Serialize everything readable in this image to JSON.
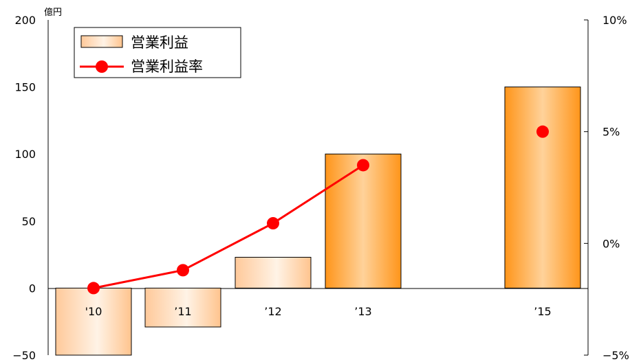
{
  "chart_data": {
    "type": "bar",
    "categories": [
      "'10",
      "’11",
      "’12",
      "’13",
      "’15"
    ],
    "series": [
      {
        "name": "営業利益",
        "type": "bar",
        "axis": "left",
        "values": [
          -50,
          -29,
          23,
          100,
          150
        ]
      },
      {
        "name": "営業利益率",
        "type": "line",
        "axis": "right",
        "values": [
          -2.0,
          -1.2,
          0.9,
          3.5,
          5.0
        ],
        "connected_points": 4
      }
    ],
    "left_axis": {
      "unit": "億円",
      "ylim": [
        -50,
        200
      ],
      "ticks": [
        -50,
        0,
        50,
        100,
        150,
        200
      ],
      "tick_labels": [
        "−50",
        "0",
        "50",
        "100",
        "150",
        "200"
      ]
    },
    "right_axis": {
      "ylim": [
        -5,
        10
      ],
      "ticks": [
        -5,
        0,
        5,
        10
      ],
      "tick_labels": [
        "−5%",
        "0%",
        "5%",
        "10%"
      ]
    },
    "grid": false,
    "legend_position": "top-left",
    "colors": {
      "bar_edge": "#ff9b2e",
      "bar_light": "#fff0e0",
      "bar_dark": "#ff9a24",
      "line": "#ff0000",
      "marker": "#ff0000"
    }
  }
}
